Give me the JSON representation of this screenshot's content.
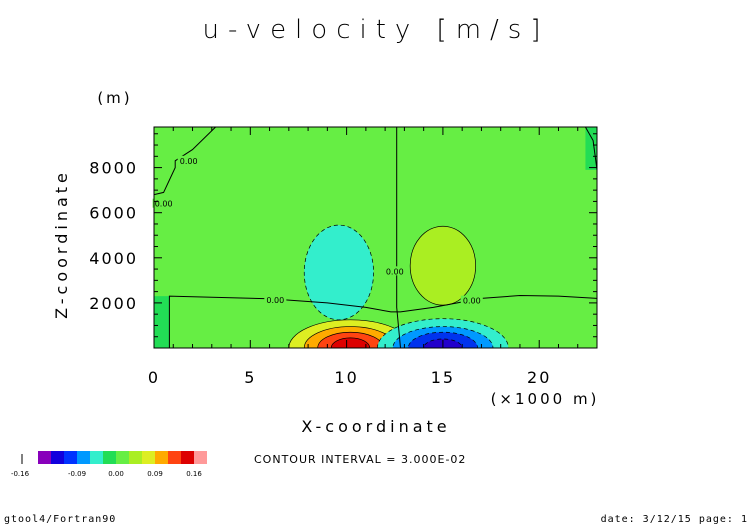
{
  "chart_data": {
    "type": "heatmap",
    "title": "u-velocity [m/s]",
    "xlabel": "X-coordinate",
    "ylabel": "Z-coordinate",
    "x_unit": "(×1000 m)",
    "y_unit": "(m)",
    "xlim": [
      0,
      23
    ],
    "ylim": [
      0,
      9800
    ],
    "x_ticks": [
      0,
      5,
      10,
      15,
      20
    ],
    "y_ticks": [
      2000,
      4000,
      6000,
      8000
    ],
    "contour_labels": [
      {
        "text": "0.00",
        "x": 1.8,
        "y": 8300
      },
      {
        "text": "0.00",
        "x": 0.5,
        "y": 6400
      },
      {
        "text": "0.00",
        "x": 6.3,
        "y": 2130
      },
      {
        "text": "0.00",
        "x": 12.5,
        "y": 3400
      },
      {
        "text": "0.00",
        "x": 16.5,
        "y": 2100
      }
    ],
    "regions": [
      {
        "shape": "rect",
        "x": [
          0,
          23
        ],
        "y": [
          0,
          9800
        ],
        "color": "#66ee44"
      },
      {
        "shape": "rect",
        "x": [
          22.4,
          23
        ],
        "y": [
          7900,
          9800
        ],
        "color": "#22dd55"
      },
      {
        "shape": "rect",
        "x": [
          0,
          0.8
        ],
        "y": [
          0,
          2300
        ],
        "color": "#22dd55"
      },
      {
        "shape": "ellipse",
        "cx": 9.6,
        "cy": 3350,
        "rx": 1.8,
        "ry": 2100,
        "color": "#33eecc"
      },
      {
        "shape": "ellipse",
        "cx": 15.0,
        "cy": 3650,
        "rx": 1.7,
        "ry": 1750,
        "color": "#aaee22"
      },
      {
        "shape": "ellipse",
        "cx": 10.2,
        "cy": 0,
        "rx": 3.2,
        "ry": 1250,
        "color": "#ddee22"
      },
      {
        "shape": "ellipse",
        "cx": 10.2,
        "cy": 0,
        "rx": 2.4,
        "ry": 950,
        "color": "#ffaa00"
      },
      {
        "shape": "ellipse",
        "cx": 10.2,
        "cy": 0,
        "rx": 1.7,
        "ry": 700,
        "color": "#ff4411"
      },
      {
        "shape": "ellipse",
        "cx": 10.2,
        "cy": 0,
        "rx": 1.0,
        "ry": 450,
        "color": "#dd0000"
      },
      {
        "shape": "ellipse",
        "cx": 15.0,
        "cy": 0,
        "rx": 3.4,
        "ry": 1300,
        "color": "#33eecc"
      },
      {
        "shape": "ellipse",
        "cx": 15.0,
        "cy": 0,
        "rx": 2.6,
        "ry": 950,
        "color": "#0099ff"
      },
      {
        "shape": "ellipse",
        "cx": 15.0,
        "cy": 0,
        "rx": 1.8,
        "ry": 700,
        "color": "#0033ee"
      },
      {
        "shape": "ellipse",
        "cx": 15.0,
        "cy": 0,
        "rx": 1.0,
        "ry": 400,
        "color": "#2200cc"
      }
    ],
    "zero_contours": [
      {
        "points": [
          [
            12.6,
            9800
          ],
          [
            12.6,
            1800
          ],
          [
            12.8,
            0
          ]
        ]
      },
      {
        "points": [
          [
            0.8,
            0
          ],
          [
            0.8,
            2300
          ],
          [
            6,
            2180
          ],
          [
            9,
            2000
          ],
          [
            11,
            1800
          ],
          [
            12.3,
            1600
          ],
          [
            12.8,
            1600
          ],
          [
            14.5,
            1800
          ],
          [
            17,
            2200
          ],
          [
            19,
            2330
          ],
          [
            21,
            2300
          ],
          [
            23,
            2200
          ]
        ]
      },
      {
        "points": [
          [
            0,
            6800
          ],
          [
            0.5,
            6900
          ],
          [
            1.1,
            8000
          ],
          [
            1.1,
            8300
          ],
          [
            2,
            8800
          ],
          [
            3.2,
            9800
          ]
        ]
      },
      {
        "points": [
          [
            22.4,
            9800
          ],
          [
            22.8,
            9200
          ],
          [
            23,
            7900
          ]
        ]
      }
    ],
    "legend": {
      "colors": [
        "#8800bb",
        "#1100dd",
        "#0033ff",
        "#0099ff",
        "#33eecc",
        "#22dd55",
        "#66ee44",
        "#aaee22",
        "#ddee22",
        "#ffaa00",
        "#ff4411",
        "#dd0000",
        "#ff9999"
      ],
      "tick_labels": [
        "-0.09",
        "0.00",
        "0.09",
        "0.16"
      ],
      "overflow_label": "-0.16"
    },
    "contour_interval": "CONTOUR INTERVAL = 3.000E-02"
  },
  "footer": {
    "left": "gtool4/Fortran90",
    "right": "date: 3/12/15 page: 1"
  }
}
